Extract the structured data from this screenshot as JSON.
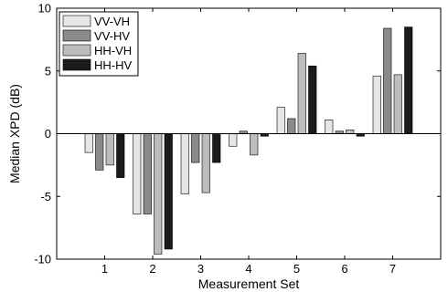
{
  "chart_data": {
    "type": "bar",
    "xlabel": "Measurement Set",
    "ylabel": "Median XPD (dB)",
    "ylim": [
      -10,
      10
    ],
    "yticks": [
      -10,
      -5,
      0,
      5,
      10
    ],
    "categories": [
      "1",
      "2",
      "3",
      "4",
      "5",
      "6",
      "7"
    ],
    "legend_position": "top-left",
    "grid": false,
    "series": [
      {
        "name": "VV-VH",
        "color": "#e6e6e6",
        "values": [
          -1.5,
          -6.4,
          -4.8,
          -1.0,
          2.1,
          1.1,
          4.6
        ]
      },
      {
        "name": "VV-HV",
        "color": "#8a8a8a",
        "values": [
          -2.9,
          -6.4,
          -2.3,
          0.2,
          1.2,
          0.2,
          8.4
        ]
      },
      {
        "name": "HH-VH",
        "color": "#bdbdbd",
        "values": [
          -2.5,
          -9.6,
          -4.7,
          -1.7,
          6.4,
          0.3,
          4.7
        ]
      },
      {
        "name": "HH-HV",
        "color": "#1a1a1a",
        "values": [
          -3.5,
          -9.2,
          -2.3,
          -0.2,
          5.4,
          -0.2,
          8.5
        ]
      }
    ]
  }
}
